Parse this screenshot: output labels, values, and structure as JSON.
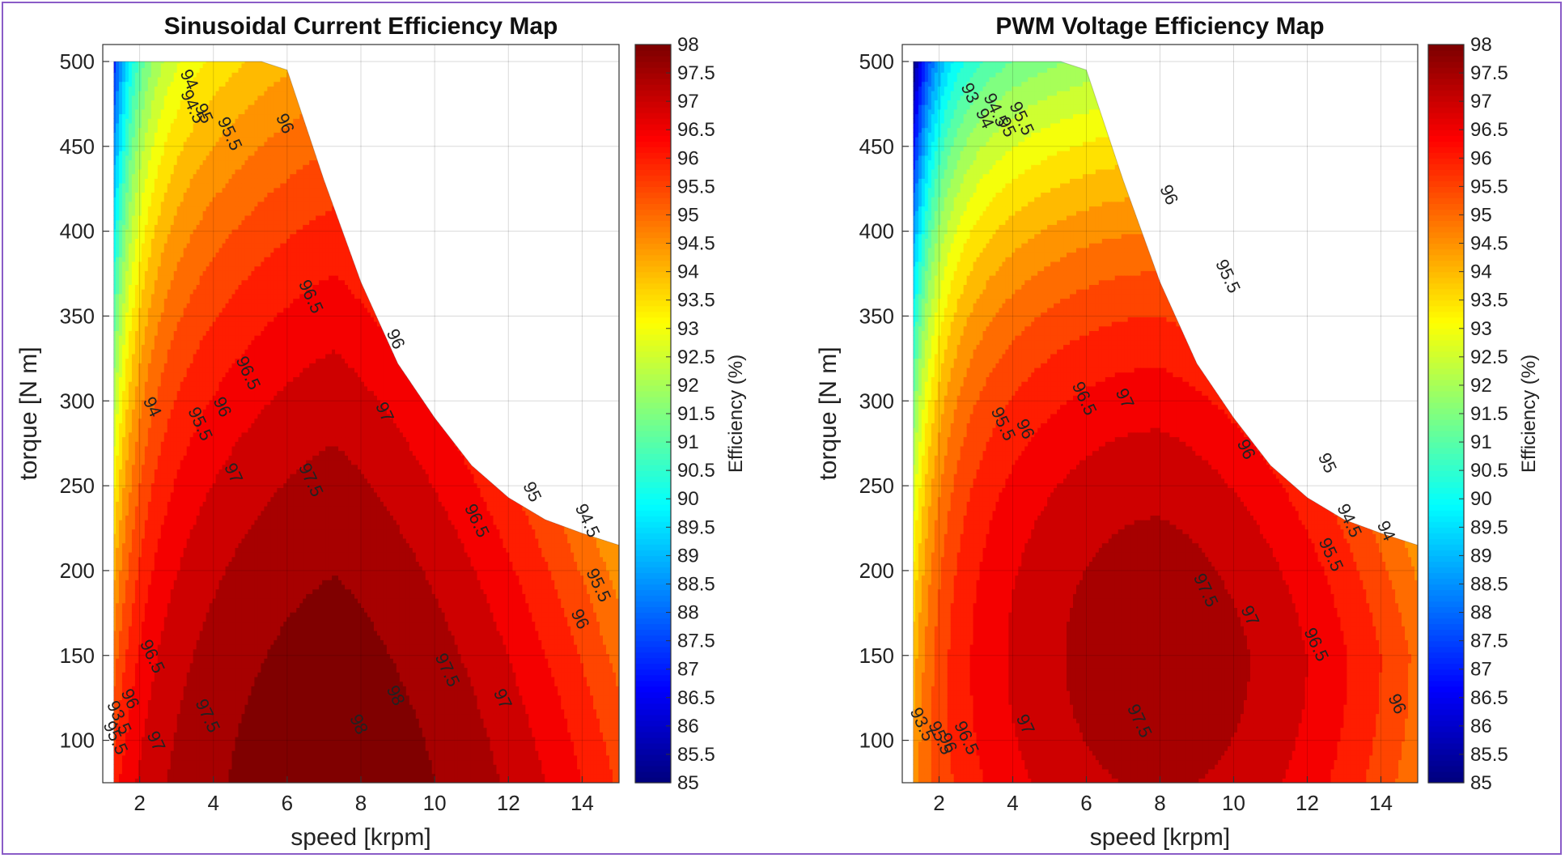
{
  "chart_data": [
    {
      "type": "heatmap",
      "subtype": "filled-contour",
      "title": "Sinusoidal Current Efficiency Map",
      "xlabel": "speed [krpm]",
      "ylabel": "torque [N m]",
      "xlim": [
        1,
        15
      ],
      "ylim": [
        75,
        510
      ],
      "xticks": [
        2,
        4,
        6,
        8,
        10,
        12,
        14
      ],
      "yticks": [
        100,
        150,
        200,
        250,
        300,
        350,
        400,
        450,
        500
      ],
      "colorbar": {
        "label": "Efficiency (%)",
        "min": 85,
        "max": 98,
        "ticks": [
          "98",
          "97.5",
          "97",
          "96.5",
          "96",
          "95.5",
          "95",
          "94.5",
          "94",
          "93.5",
          "93",
          "92.5",
          "92",
          "91.5",
          "91",
          "90.5",
          "90",
          "89.5",
          "89",
          "88.5",
          "88",
          "87.5",
          "87",
          "86.5",
          "86",
          "85.5",
          "85"
        ]
      },
      "colormap": "jet",
      "grid": true,
      "peak": {
        "speed": 7.3,
        "torque": 75,
        "efficiency": 98.3
      },
      "speed_min": 1.3,
      "torque_limit_curve": [
        [
          1.3,
          500
        ],
        [
          5.3,
          500
        ],
        [
          6,
          495
        ],
        [
          7,
          430
        ],
        [
          8,
          370
        ],
        [
          9,
          322
        ],
        [
          10,
          290
        ],
        [
          11,
          262
        ],
        [
          12,
          243
        ],
        [
          13,
          230
        ],
        [
          14,
          222
        ],
        [
          15,
          215
        ]
      ],
      "contour_labels": [
        {
          "text": "98",
          "x": 7.8,
          "y": 108
        },
        {
          "text": "98",
          "x": 8.8,
          "y": 125
        },
        {
          "text": "97.5",
          "x": 6.5,
          "y": 252
        },
        {
          "text": "97.5",
          "x": 10.2,
          "y": 140
        },
        {
          "text": "97.5",
          "x": 3.7,
          "y": 113
        },
        {
          "text": "97",
          "x": 8.5,
          "y": 292
        },
        {
          "text": "97",
          "x": 11.7,
          "y": 123
        },
        {
          "text": "97",
          "x": 4.4,
          "y": 256
        },
        {
          "text": "97",
          "x": 2.3,
          "y": 98
        },
        {
          "text": "96.5",
          "x": 6.5,
          "y": 360
        },
        {
          "text": "96.5",
          "x": 11,
          "y": 228
        },
        {
          "text": "96.5",
          "x": 4.8,
          "y": 315
        },
        {
          "text": "96.5",
          "x": 2.2,
          "y": 148
        },
        {
          "text": "96",
          "x": 5.8,
          "y": 462
        },
        {
          "text": "96",
          "x": 8.8,
          "y": 335
        },
        {
          "text": "96",
          "x": 13.8,
          "y": 170
        },
        {
          "text": "96",
          "x": 4.1,
          "y": 295
        },
        {
          "text": "96",
          "x": 1.6,
          "y": 123
        },
        {
          "text": "95.5",
          "x": 14.3,
          "y": 190
        },
        {
          "text": "95.5",
          "x": 4.3,
          "y": 456
        },
        {
          "text": "95.5",
          "x": 3.5,
          "y": 285
        },
        {
          "text": "95",
          "x": 12.5,
          "y": 245
        },
        {
          "text": "95",
          "x": 3.6,
          "y": 468
        },
        {
          "text": "94.5",
          "x": 3.3,
          "y": 472
        },
        {
          "text": "94.5",
          "x": 14,
          "y": 228
        },
        {
          "text": "94",
          "x": 3.2,
          "y": 488
        },
        {
          "text": "94",
          "x": 2.2,
          "y": 295
        },
        {
          "text": "93.5",
          "x": 1.3,
          "y": 112
        },
        {
          "text": "95.5",
          "x": 1.2,
          "y": 100
        }
      ]
    },
    {
      "type": "heatmap",
      "subtype": "filled-contour",
      "title": "PWM Voltage Efficiency Map",
      "xlabel": "speed [krpm]",
      "ylabel": "torque [N m]",
      "xlim": [
        1,
        15
      ],
      "ylim": [
        75,
        510
      ],
      "xticks": [
        2,
        4,
        6,
        8,
        10,
        12,
        14
      ],
      "yticks": [
        100,
        150,
        200,
        250,
        300,
        350,
        400,
        450,
        500
      ],
      "colorbar": {
        "label": "Efficiency (%)",
        "min": 85,
        "max": 98,
        "ticks": [
          "98",
          "97.5",
          "97",
          "96.5",
          "96",
          "95.5",
          "95",
          "94.5",
          "94",
          "93.5",
          "93",
          "92.5",
          "92",
          "91.5",
          "91",
          "90.5",
          "90",
          "89.5",
          "89",
          "88.5",
          "88",
          "87.5",
          "87",
          "86.5",
          "86",
          "85.5",
          "85"
        ]
      },
      "colormap": "jet",
      "grid": true,
      "peak": {
        "speed": 8.0,
        "torque": 150,
        "efficiency": 97.8
      },
      "speed_min": 1.3,
      "torque_limit_curve": [
        [
          1.3,
          500
        ],
        [
          5.3,
          500
        ],
        [
          6,
          495
        ],
        [
          7,
          430
        ],
        [
          8,
          370
        ],
        [
          9,
          322
        ],
        [
          10,
          290
        ],
        [
          11,
          262
        ],
        [
          12,
          243
        ],
        [
          13,
          230
        ],
        [
          14,
          222
        ],
        [
          15,
          215
        ]
      ],
      "contour_labels": [
        {
          "text": "97.5",
          "x": 9.1,
          "y": 187
        },
        {
          "text": "97.5",
          "x": 7.3,
          "y": 110
        },
        {
          "text": "97",
          "x": 10.3,
          "y": 172
        },
        {
          "text": "97",
          "x": 6.9,
          "y": 300
        },
        {
          "text": "97",
          "x": 4.2,
          "y": 108
        },
        {
          "text": "96.5",
          "x": 12.1,
          "y": 155
        },
        {
          "text": "96.5",
          "x": 5.8,
          "y": 300
        },
        {
          "text": "96.5",
          "x": 2.6,
          "y": 100
        },
        {
          "text": "96",
          "x": 10.2,
          "y": 270
        },
        {
          "text": "96",
          "x": 14.3,
          "y": 120
        },
        {
          "text": "96",
          "x": 8.1,
          "y": 420
        },
        {
          "text": "96",
          "x": 4.2,
          "y": 282
        },
        {
          "text": "96",
          "x": 2.1,
          "y": 97
        },
        {
          "text": "95.5",
          "x": 12.5,
          "y": 208
        },
        {
          "text": "95.5",
          "x": 9.7,
          "y": 372
        },
        {
          "text": "95.5",
          "x": 3.6,
          "y": 285
        },
        {
          "text": "95.5",
          "x": 4.1,
          "y": 465
        },
        {
          "text": "95.5",
          "x": 1.9,
          "y": 100
        },
        {
          "text": "95",
          "x": 12.4,
          "y": 262
        },
        {
          "text": "95",
          "x": 3.7,
          "y": 460
        },
        {
          "text": "94.5",
          "x": 13,
          "y": 228
        },
        {
          "text": "94.5",
          "x": 3.4,
          "y": 470
        },
        {
          "text": "94",
          "x": 14,
          "y": 222
        },
        {
          "text": "94",
          "x": 3.1,
          "y": 465
        },
        {
          "text": "93",
          "x": 2.7,
          "y": 480
        },
        {
          "text": "93.5",
          "x": 1.4,
          "y": 108
        }
      ]
    }
  ]
}
